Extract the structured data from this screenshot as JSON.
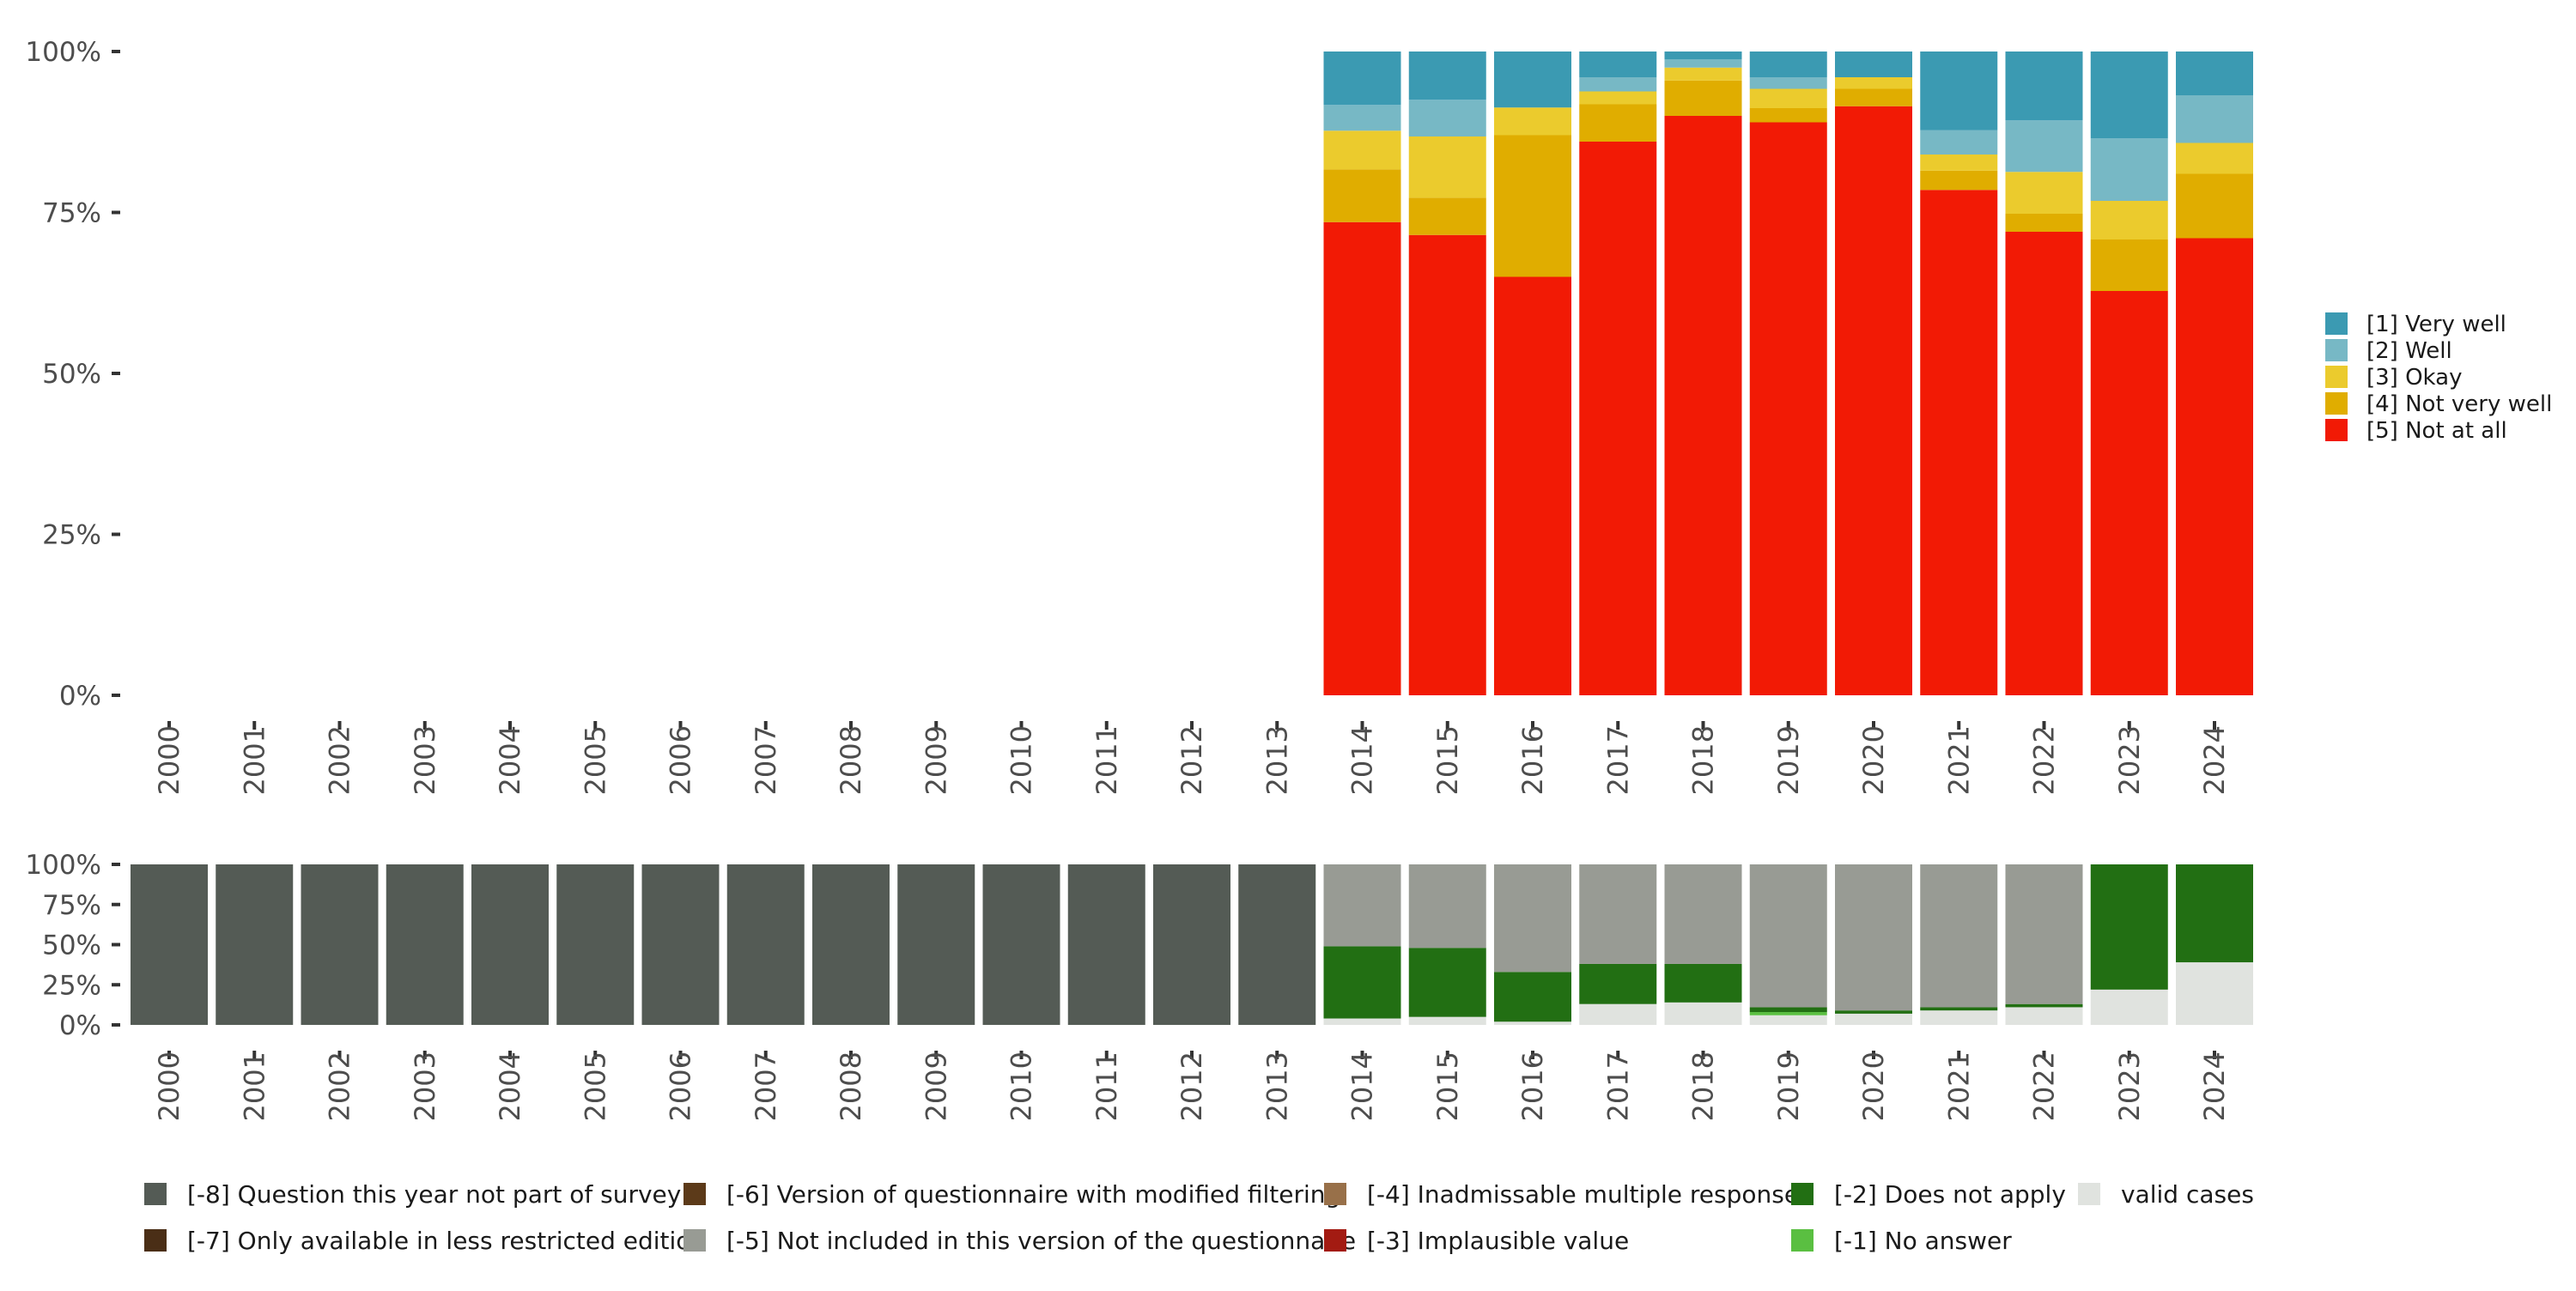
{
  "chart_data": [
    {
      "id": "top",
      "type": "bar",
      "stacked": true,
      "title": "",
      "xlabel": "",
      "ylabel": "",
      "ylim": [
        0,
        100
      ],
      "yticks": [
        "0%",
        "25%",
        "50%",
        "75%",
        "100%"
      ],
      "categories": [
        "2000",
        "2001",
        "2002",
        "2003",
        "2004",
        "2005",
        "2006",
        "2007",
        "2008",
        "2009",
        "2010",
        "2011",
        "2012",
        "2013",
        "2014",
        "2015",
        "2016",
        "2017",
        "2018",
        "2019",
        "2020",
        "2021",
        "2022",
        "2023",
        "2024"
      ],
      "legend_position": "right",
      "series": [
        {
          "name": "[5] Not at all",
          "color": "#f21a05",
          "values": [
            null,
            null,
            null,
            null,
            null,
            null,
            null,
            null,
            null,
            null,
            null,
            null,
            null,
            null,
            73.5,
            71.5,
            65,
            86,
            90,
            89,
            91.5,
            78.5,
            72,
            62.8,
            71
          ]
        },
        {
          "name": "[4] Not very well",
          "color": "#e0ad00",
          "values": [
            null,
            null,
            null,
            null,
            null,
            null,
            null,
            null,
            null,
            null,
            null,
            null,
            null,
            null,
            8.2,
            5.8,
            22,
            5.8,
            5.5,
            2.2,
            2.7,
            3,
            2.8,
            8,
            10
          ]
        },
        {
          "name": "[3] Okay",
          "color": "#ebcb2d",
          "values": [
            null,
            null,
            null,
            null,
            null,
            null,
            null,
            null,
            null,
            null,
            null,
            null,
            null,
            null,
            6,
            9.5,
            4.3,
            2,
            2,
            3,
            1.8,
            2.5,
            6.5,
            6,
            4.8
          ]
        },
        {
          "name": "[2] Well",
          "color": "#77b8c5",
          "values": [
            null,
            null,
            null,
            null,
            null,
            null,
            null,
            null,
            null,
            null,
            null,
            null,
            null,
            null,
            4,
            5.7,
            0,
            2.2,
            1.3,
            1.8,
            0,
            3.8,
            8,
            9.7,
            7.4
          ]
        },
        {
          "name": "[1] Very well",
          "color": "#3b9ab2",
          "values": [
            null,
            null,
            null,
            null,
            null,
            null,
            null,
            null,
            null,
            null,
            null,
            null,
            null,
            null,
            8.3,
            7.5,
            8.7,
            4,
            1.2,
            4,
            4,
            12.2,
            10.7,
            13.5,
            6.8
          ]
        }
      ],
      "legend": [
        {
          "name": "[1] Very well",
          "color": "#3b9ab2"
        },
        {
          "name": "[2] Well",
          "color": "#77b8c5"
        },
        {
          "name": "[3] Okay",
          "color": "#ebcb2d"
        },
        {
          "name": "[4] Not very well",
          "color": "#e0ad00"
        },
        {
          "name": "[5] Not at all",
          "color": "#f21a05"
        }
      ]
    },
    {
      "id": "bottom",
      "type": "bar",
      "stacked": true,
      "title": "",
      "xlabel": "",
      "ylabel": "",
      "ylim": [
        0,
        100
      ],
      "yticks": [
        "0%",
        "25%",
        "50%",
        "75%",
        "100%"
      ],
      "categories": [
        "2000",
        "2001",
        "2002",
        "2003",
        "2004",
        "2005",
        "2006",
        "2007",
        "2008",
        "2009",
        "2010",
        "2011",
        "2012",
        "2013",
        "2014",
        "2015",
        "2016",
        "2017",
        "2018",
        "2019",
        "2020",
        "2021",
        "2022",
        "2023",
        "2024"
      ],
      "legend_position": "bottom",
      "series": [
        {
          "name": "valid cases",
          "color": "#e0e3df",
          "values": [
            0,
            0,
            0,
            0,
            0,
            0,
            0,
            0,
            0,
            0,
            0,
            0,
            0,
            0,
            4,
            5,
            2,
            13,
            14,
            6,
            7,
            9,
            11,
            22,
            39
          ]
        },
        {
          "name": "[-1] No answer",
          "color": "#5abf41",
          "values": [
            0,
            0,
            0,
            0,
            0,
            0,
            0,
            0,
            0,
            0,
            0,
            0,
            0,
            0,
            0,
            0,
            0,
            0,
            0,
            2,
            0,
            0,
            0,
            0,
            0
          ]
        },
        {
          "name": "[-2] Does not apply",
          "color": "#226f13",
          "values": [
            0,
            0,
            0,
            0,
            0,
            0,
            0,
            0,
            0,
            0,
            0,
            0,
            0,
            0,
            45,
            43,
            31,
            25,
            24,
            3,
            2,
            2,
            2,
            78,
            61
          ]
        },
        {
          "name": "[-5] Not included in this version of the questionnaire",
          "color": "#989b94",
          "values": [
            0,
            0,
            0,
            0,
            0,
            0,
            0,
            0,
            0,
            0,
            0,
            0,
            0,
            0,
            51,
            52,
            67,
            62,
            62,
            89,
            91,
            89,
            87,
            0,
            0
          ]
        },
        {
          "name": "[-8] Question this year not part of survey",
          "color": "#545b55",
          "values": [
            100,
            100,
            100,
            100,
            100,
            100,
            100,
            100,
            100,
            100,
            100,
            100,
            100,
            100,
            0,
            0,
            0,
            0,
            0,
            0,
            0,
            0,
            0,
            0,
            0
          ]
        }
      ],
      "legend": [
        {
          "name": "[-8] Question this year not part of survey",
          "color": "#545b55"
        },
        {
          "name": "[-7] Only available in less restricted edition",
          "color": "#4a2e16"
        },
        {
          "name": "[-6] Version of questionnaire with modified filtering",
          "color": "#5c3a19"
        },
        {
          "name": "[-5] Not included in this version of the questionnaire",
          "color": "#989b94"
        },
        {
          "name": "[-4] Inadmissable multiple response",
          "color": "#987049"
        },
        {
          "name": "[-3] Implausible value",
          "color": "#a31b12"
        },
        {
          "name": "[-2] Does not apply",
          "color": "#226f13"
        },
        {
          "name": "[-1] No answer",
          "color": "#5abf41"
        },
        {
          "name": "valid cases",
          "color": "#e0e3df"
        }
      ]
    }
  ]
}
